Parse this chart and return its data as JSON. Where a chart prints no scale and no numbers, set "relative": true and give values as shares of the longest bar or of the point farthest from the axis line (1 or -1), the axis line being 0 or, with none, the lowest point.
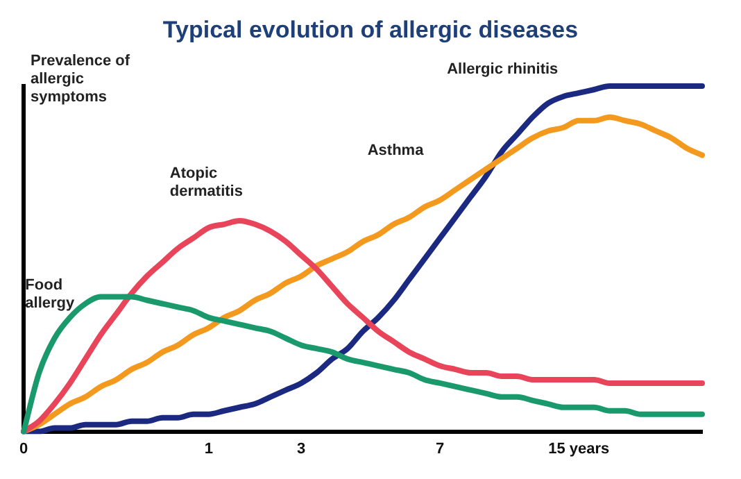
{
  "chart_data": {
    "type": "line",
    "title": "Typical evolution of allergic diseases",
    "ylabel": "Prevalence of allergic symptoms",
    "relative": true,
    "legend": false,
    "grid": false,
    "marker": "none",
    "categories": [
      "0",
      null,
      null,
      null,
      null,
      null,
      null,
      null,
      null,
      null,
      null,
      null,
      "1",
      null,
      null,
      null,
      null,
      null,
      "3",
      null,
      null,
      null,
      null,
      null,
      null,
      null,
      null,
      "7",
      null,
      null,
      null,
      null,
      null,
      null,
      null,
      null,
      "15 years",
      null,
      null,
      null,
      null,
      null,
      null,
      null,
      null
    ],
    "series": [
      {
        "name": "Food allergy",
        "color": "#1a9a6c",
        "values": [
          0,
          0.17,
          0.27,
          0.33,
          0.37,
          0.39,
          0.39,
          0.39,
          0.38,
          0.37,
          0.36,
          0.35,
          0.33,
          0.32,
          0.31,
          0.3,
          0.29,
          0.27,
          0.25,
          0.24,
          0.23,
          0.21,
          0.2,
          0.19,
          0.18,
          0.17,
          0.15,
          0.14,
          0.13,
          0.12,
          0.11,
          0.1,
          0.1,
          0.09,
          0.08,
          0.07,
          0.07,
          0.07,
          0.06,
          0.06,
          0.05,
          0.05,
          0.05,
          0.05,
          0.05
        ]
      },
      {
        "name": "Atopic dermatitis",
        "color": "#e8445a",
        "values": [
          0,
          0.03,
          0.08,
          0.14,
          0.21,
          0.28,
          0.34,
          0.4,
          0.45,
          0.49,
          0.53,
          0.56,
          0.59,
          0.6,
          0.61,
          0.6,
          0.58,
          0.55,
          0.51,
          0.47,
          0.42,
          0.37,
          0.33,
          0.29,
          0.26,
          0.23,
          0.21,
          0.19,
          0.18,
          0.17,
          0.17,
          0.16,
          0.16,
          0.15,
          0.15,
          0.15,
          0.15,
          0.15,
          0.14,
          0.14,
          0.14,
          0.14,
          0.14,
          0.14,
          0.14
        ]
      },
      {
        "name": "Asthma",
        "color": "#f39a1e",
        "values": [
          0,
          0.02,
          0.05,
          0.08,
          0.1,
          0.13,
          0.15,
          0.18,
          0.2,
          0.23,
          0.25,
          0.28,
          0.3,
          0.33,
          0.35,
          0.38,
          0.4,
          0.43,
          0.45,
          0.48,
          0.5,
          0.52,
          0.55,
          0.57,
          0.6,
          0.62,
          0.65,
          0.67,
          0.7,
          0.73,
          0.76,
          0.79,
          0.82,
          0.85,
          0.87,
          0.88,
          0.9,
          0.9,
          0.91,
          0.9,
          0.89,
          0.87,
          0.85,
          0.82,
          0.8
        ]
      },
      {
        "name": "Allergic rhinitis",
        "color": "#1b2a80",
        "values": [
          0,
          0,
          0.01,
          0.01,
          0.02,
          0.02,
          0.02,
          0.03,
          0.03,
          0.04,
          0.04,
          0.05,
          0.05,
          0.06,
          0.07,
          0.08,
          0.1,
          0.12,
          0.14,
          0.17,
          0.21,
          0.24,
          0.29,
          0.33,
          0.38,
          0.44,
          0.5,
          0.56,
          0.62,
          0.68,
          0.74,
          0.81,
          0.86,
          0.91,
          0.95,
          0.97,
          0.98,
          0.99,
          1,
          1,
          1,
          1,
          1,
          1,
          1
        ]
      }
    ]
  }
}
